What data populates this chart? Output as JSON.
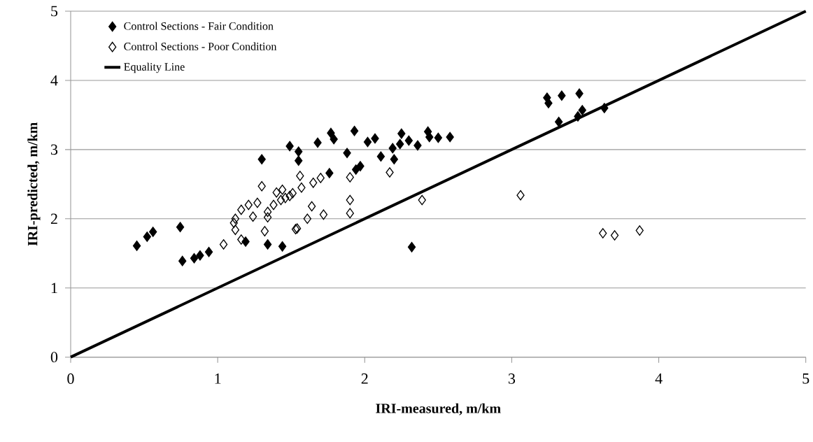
{
  "chart_data": {
    "type": "scatter",
    "xlabel": "IRI-measured, m/km",
    "ylabel": "IRI-predicted, m/km",
    "xlim": [
      0,
      5
    ],
    "ylim": [
      0,
      5
    ],
    "xticks": [
      0,
      1,
      2,
      3,
      4,
      5
    ],
    "yticks": [
      0,
      1,
      2,
      3,
      4,
      5
    ],
    "grid": "y",
    "legend": "top left",
    "marker": "diamond",
    "series": [
      {
        "name": "Control Sections - Fair Condition",
        "color": "#000000",
        "x": [
          0.45,
          0.52,
          0.56,
          0.745,
          0.76,
          0.84,
          0.88,
          0.94,
          1.19,
          1.34,
          1.44,
          2.32,
          1.3,
          1.49,
          1.55,
          1.55,
          1.68,
          1.76,
          1.77,
          1.79,
          1.93,
          1.88,
          1.97,
          1.94,
          2.02,
          2.07,
          2.11,
          2.19,
          2.2,
          2.25,
          2.24,
          2.3,
          2.36,
          2.43,
          2.44,
          2.5,
          2.58,
          3.24,
          3.25,
          3.34,
          3.46,
          3.32,
          3.45,
          3.48,
          3.63
        ],
        "values": [
          1.61,
          1.74,
          1.81,
          1.88,
          1.39,
          1.43,
          1.47,
          1.52,
          1.67,
          1.63,
          1.6,
          1.59,
          2.86,
          3.05,
          2.97,
          2.84,
          3.1,
          2.66,
          3.24,
          3.15,
          3.27,
          2.95,
          2.76,
          2.71,
          3.11,
          3.16,
          2.9,
          3.02,
          2.86,
          3.23,
          3.08,
          3.13,
          3.06,
          3.26,
          3.18,
          3.17,
          3.18,
          3.75,
          3.67,
          3.78,
          3.81,
          3.4,
          3.48,
          3.57,
          3.6
        ]
      },
      {
        "name": "Control Sections - Poor Condition",
        "color": "#000000",
        "x": [
          3.62,
          3.7,
          3.87,
          3.06,
          2.39,
          2.17,
          1.9,
          1.9,
          1.72,
          1.61,
          1.64,
          1.53,
          1.9,
          1.7,
          1.65,
          1.56,
          1.57,
          1.51,
          1.46,
          1.44,
          1.3,
          1.4,
          1.21,
          1.27,
          1.38,
          1.43,
          1.49,
          1.16,
          1.12,
          1.34,
          1.04,
          1.12,
          1.16,
          1.32,
          1.54,
          1.34,
          1.24,
          1.11
        ],
        "values": [
          1.79,
          1.76,
          1.83,
          2.34,
          2.27,
          2.67,
          2.27,
          2.08,
          2.06,
          2.0,
          2.18,
          1.85,
          2.6,
          2.59,
          2.52,
          2.62,
          2.45,
          2.37,
          2.3,
          2.42,
          2.47,
          2.38,
          2.2,
          2.23,
          2.2,
          2.27,
          2.33,
          2.13,
          2.0,
          2.1,
          1.63,
          1.84,
          1.7,
          1.82,
          1.86,
          2.02,
          2.03,
          1.94
        ]
      },
      {
        "name": "Equality Line",
        "type": "line",
        "marker": "none",
        "color": "#000000",
        "x": [
          0,
          5
        ],
        "values": [
          0,
          5
        ]
      }
    ]
  }
}
